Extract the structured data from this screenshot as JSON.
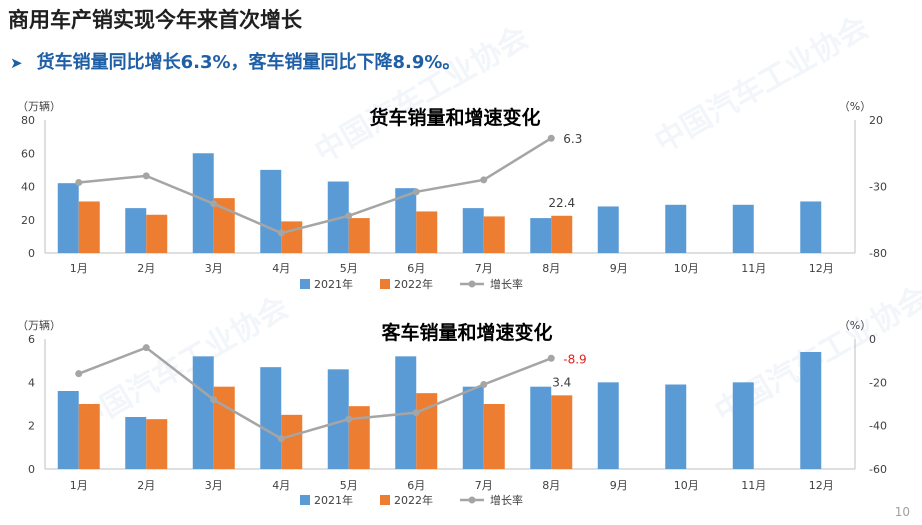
{
  "page": {
    "title": "商用车产销实现今年来首次增长",
    "subtitle": "货车销量同比增长6.3%，客车销量同比下降8.9%。",
    "page_number": "10",
    "watermark": "中国汽车工业协会"
  },
  "colors": {
    "c2021": "#5b9bd5",
    "c2022": "#ed7d31",
    "rate": "#a5a5a5",
    "highlight": "#e02020"
  },
  "chart_data": [
    {
      "type": "bar",
      "title": "货车销量和增速变化",
      "ylabel": "（万辆）",
      "y2label": "（%）",
      "ylim": [
        0,
        80
      ],
      "yticks": [
        0,
        20,
        40,
        60,
        80
      ],
      "y2lim": [
        -80,
        20
      ],
      "y2ticks": [
        -80,
        -30,
        20
      ],
      "categories": [
        "1月",
        "2月",
        "3月",
        "4月",
        "5月",
        "6月",
        "7月",
        "8月",
        "9月",
        "10月",
        "11月",
        "12月"
      ],
      "series": [
        {
          "name": "2021年",
          "type": "bar",
          "values": [
            42,
            27,
            60,
            50,
            43,
            39,
            27,
            21,
            28,
            29,
            29,
            31
          ]
        },
        {
          "name": "2022年",
          "type": "bar",
          "values": [
            31,
            23,
            33,
            19,
            21,
            25,
            22,
            22.4,
            null,
            null,
            null,
            null
          ]
        },
        {
          "name": "增长率",
          "type": "line",
          "axis": "right",
          "values": [
            -27,
            -22,
            -43,
            -65,
            -52,
            -34,
            -25,
            6.3,
            null,
            null,
            null,
            null
          ]
        }
      ],
      "annotations": {
        "bar_label": "22.4",
        "rate_label": "6.3"
      },
      "legend": "bottom"
    },
    {
      "type": "bar",
      "title": "客车销量和增速变化",
      "ylabel": "（万辆）",
      "y2label": "（%）",
      "ylim": [
        0,
        6
      ],
      "yticks": [
        0,
        2,
        4,
        6
      ],
      "y2lim": [
        -60,
        0
      ],
      "y2ticks": [
        -60,
        -40,
        -20,
        0
      ],
      "categories": [
        "1月",
        "2月",
        "3月",
        "4月",
        "5月",
        "6月",
        "7月",
        "8月",
        "9月",
        "10月",
        "11月",
        "12月"
      ],
      "series": [
        {
          "name": "2021年",
          "type": "bar",
          "values": [
            3.6,
            2.4,
            5.2,
            4.7,
            4.6,
            5.2,
            3.8,
            3.8,
            4.0,
            3.9,
            4.0,
            5.4
          ]
        },
        {
          "name": "2022年",
          "type": "bar",
          "values": [
            3.0,
            2.3,
            3.8,
            2.5,
            2.9,
            3.5,
            3.0,
            3.4,
            null,
            null,
            null,
            null
          ]
        },
        {
          "name": "增长率",
          "type": "line",
          "axis": "right",
          "values": [
            -16,
            -4,
            -28,
            -46,
            -37,
            -34,
            -21,
            -8.9,
            null,
            null,
            null,
            null
          ]
        }
      ],
      "annotations": {
        "bar_label": "3.4",
        "rate_label": "-8.9"
      },
      "legend": "bottom"
    }
  ]
}
